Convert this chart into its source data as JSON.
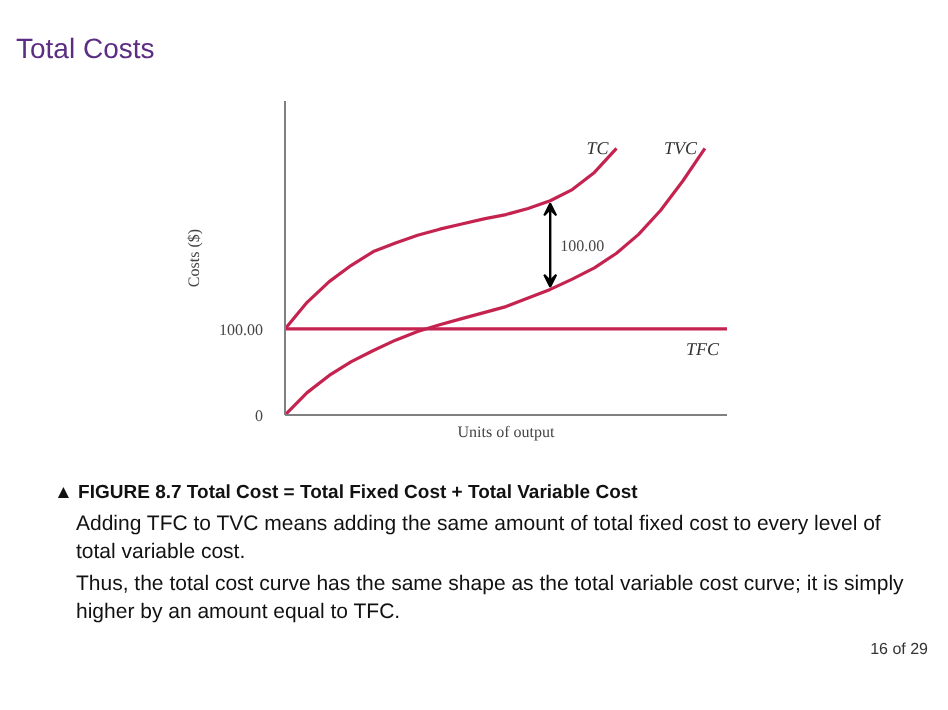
{
  "chart_data": {
    "type": "line",
    "title": "Total Costs",
    "xlabel": "Units of output",
    "ylabel": "Costs ($)",
    "categories": [
      null,
      null,
      null,
      null,
      null,
      null,
      null,
      null,
      null,
      null,
      null,
      null,
      null,
      null,
      null,
      null,
      null,
      null,
      null,
      null,
      null
    ],
    "ylim": [
      0,
      365
    ],
    "yticks": [
      0,
      {
        "value": 100,
        "label": "100.00"
      }
    ],
    "tick_labels": "y",
    "marker": "none",
    "line_style": "solid",
    "series": [
      {
        "name": "TC",
        "color": "#c42350",
        "values": [
          100,
          131,
          155,
          174,
          190,
          200,
          209,
          216,
          222,
          228,
          233,
          240,
          249,
          262,
          282,
          310,
          null,
          null,
          null,
          null,
          null
        ]
      },
      {
        "name": "TVC",
        "color": "#c42350",
        "values": [
          0,
          26,
          46,
          62,
          75,
          87,
          97,
          105,
          112,
          119,
          126,
          136,
          146,
          158,
          171,
          188,
          210,
          238,
          272,
          310,
          null
        ]
      },
      {
        "name": "TFC",
        "color": "#c42350",
        "values": [
          100,
          100,
          100,
          100,
          100,
          100,
          100,
          100,
          100,
          100,
          100,
          100,
          100,
          100,
          100,
          100,
          100,
          100,
          100,
          100,
          100
        ]
      }
    ],
    "annotations": [
      "100.00",
      "▲ FIGURE 8.7 Total Cost = Total Fixed Cost + Total Variable Cost",
      "Adding TFC to TVC means adding the same amount of total fixed cost to every level of total variable cost.",
      "Thus, the total cost curve has the same shape as the total variable cost curve; it is  simply higher by an amount equal to TFC.",
      "16 of 29"
    ]
  }
}
